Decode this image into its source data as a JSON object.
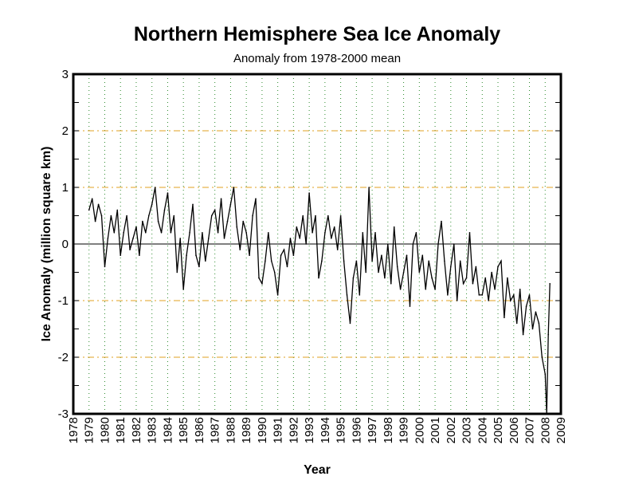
{
  "chart_data": {
    "type": "line",
    "title": "Northern Hemisphere Sea Ice Anomaly",
    "subtitle": "Anomaly from 1978-2000 mean",
    "xlabel": "Year",
    "ylabel": "Ice Anomaly (million square km)",
    "xlim": [
      1978,
      2009
    ],
    "ylim": [
      -3,
      3
    ],
    "xticks": [
      "1978",
      "1979",
      "1980",
      "1981",
      "1982",
      "1983",
      "1984",
      "1985",
      "1986",
      "1987",
      "1988",
      "1989",
      "1990",
      "1991",
      "1992",
      "1993",
      "1994",
      "1995",
      "1996",
      "1997",
      "1998",
      "1999",
      "2000",
      "2001",
      "2002",
      "2003",
      "2004",
      "2005",
      "2006",
      "2007",
      "2008",
      "2009"
    ],
    "yticks": [
      "-3",
      "-2",
      "-1",
      "0",
      "1",
      "2",
      "3"
    ],
    "grid": {
      "vertical": "green dotted, each year",
      "horizontal": "orange dash-dot at ±1, ±2",
      "zero_line": "black solid"
    },
    "colors": {
      "line": "#000000",
      "vgrid": "#2e8b2e",
      "hgrid": "#e0a020"
    },
    "series": [
      {
        "points": [
          [
            1979.0,
            0.6
          ],
          [
            1979.2,
            0.8
          ],
          [
            1979.4,
            0.4
          ],
          [
            1979.6,
            0.7
          ],
          [
            1979.8,
            0.5
          ],
          [
            1980.0,
            -0.4
          ],
          [
            1980.2,
            0.1
          ],
          [
            1980.4,
            0.5
          ],
          [
            1980.6,
            0.2
          ],
          [
            1980.8,
            0.6
          ],
          [
            1981.0,
            -0.2
          ],
          [
            1981.2,
            0.2
          ],
          [
            1981.4,
            0.5
          ],
          [
            1981.6,
            -0.1
          ],
          [
            1981.8,
            0.1
          ],
          [
            1982.0,
            0.3
          ],
          [
            1982.2,
            -0.2
          ],
          [
            1982.4,
            0.4
          ],
          [
            1982.6,
            0.2
          ],
          [
            1982.8,
            0.5
          ],
          [
            1983.0,
            0.7
          ],
          [
            1983.2,
            1.0
          ],
          [
            1983.4,
            0.4
          ],
          [
            1983.6,
            0.2
          ],
          [
            1983.8,
            0.6
          ],
          [
            1984.0,
            0.9
          ],
          [
            1984.2,
            0.2
          ],
          [
            1984.4,
            0.5
          ],
          [
            1984.6,
            -0.5
          ],
          [
            1984.8,
            0.1
          ],
          [
            1985.0,
            -0.8
          ],
          [
            1985.2,
            -0.2
          ],
          [
            1985.4,
            0.2
          ],
          [
            1985.6,
            0.7
          ],
          [
            1985.8,
            -0.2
          ],
          [
            1986.0,
            -0.4
          ],
          [
            1986.2,
            0.2
          ],
          [
            1986.4,
            -0.3
          ],
          [
            1986.6,
            0.1
          ],
          [
            1986.8,
            0.5
          ],
          [
            1987.0,
            0.6
          ],
          [
            1987.2,
            0.2
          ],
          [
            1987.4,
            0.8
          ],
          [
            1987.6,
            0.1
          ],
          [
            1987.8,
            0.4
          ],
          [
            1988.0,
            0.7
          ],
          [
            1988.2,
            1.0
          ],
          [
            1988.4,
            0.3
          ],
          [
            1988.6,
            -0.1
          ],
          [
            1988.8,
            0.4
          ],
          [
            1989.0,
            0.2
          ],
          [
            1989.2,
            -0.2
          ],
          [
            1989.4,
            0.5
          ],
          [
            1989.6,
            0.8
          ],
          [
            1989.8,
            -0.6
          ],
          [
            1990.0,
            -0.7
          ],
          [
            1990.2,
            -0.3
          ],
          [
            1990.4,
            0.2
          ],
          [
            1990.6,
            -0.3
          ],
          [
            1990.8,
            -0.5
          ],
          [
            1991.0,
            -0.9
          ],
          [
            1991.2,
            -0.2
          ],
          [
            1991.4,
            -0.1
          ],
          [
            1991.6,
            -0.4
          ],
          [
            1991.8,
            0.1
          ],
          [
            1992.0,
            -0.2
          ],
          [
            1992.2,
            0.3
          ],
          [
            1992.4,
            0.1
          ],
          [
            1992.6,
            0.5
          ],
          [
            1992.8,
            0.0
          ],
          [
            1993.0,
            0.9
          ],
          [
            1993.2,
            0.2
          ],
          [
            1993.4,
            0.5
          ],
          [
            1993.6,
            -0.6
          ],
          [
            1993.8,
            -0.3
          ],
          [
            1994.0,
            0.2
          ],
          [
            1994.2,
            0.5
          ],
          [
            1994.4,
            0.1
          ],
          [
            1994.6,
            0.3
          ],
          [
            1994.8,
            -0.1
          ],
          [
            1995.0,
            0.5
          ],
          [
            1995.2,
            -0.3
          ],
          [
            1995.4,
            -0.9
          ],
          [
            1995.6,
            -1.4
          ],
          [
            1995.8,
            -0.6
          ],
          [
            1996.0,
            -0.3
          ],
          [
            1996.2,
            -0.9
          ],
          [
            1996.4,
            0.2
          ],
          [
            1996.6,
            -0.5
          ],
          [
            1996.8,
            1.0
          ],
          [
            1997.0,
            -0.3
          ],
          [
            1997.2,
            0.2
          ],
          [
            1997.4,
            -0.5
          ],
          [
            1997.6,
            -0.2
          ],
          [
            1997.8,
            -0.6
          ],
          [
            1998.0,
            0.0
          ],
          [
            1998.2,
            -0.7
          ],
          [
            1998.4,
            0.3
          ],
          [
            1998.6,
            -0.4
          ],
          [
            1998.8,
            -0.8
          ],
          [
            1999.0,
            -0.5
          ],
          [
            1999.2,
            -0.2
          ],
          [
            1999.4,
            -1.1
          ],
          [
            1999.6,
            0.0
          ],
          [
            1999.8,
            0.2
          ],
          [
            2000.0,
            -0.5
          ],
          [
            2000.2,
            -0.2
          ],
          [
            2000.4,
            -0.8
          ],
          [
            2000.6,
            -0.3
          ],
          [
            2000.8,
            -0.6
          ],
          [
            2001.0,
            -0.8
          ],
          [
            2001.2,
            0.0
          ],
          [
            2001.4,
            0.4
          ],
          [
            2001.6,
            -0.3
          ],
          [
            2001.8,
            -0.9
          ],
          [
            2002.0,
            -0.4
          ],
          [
            2002.2,
            0.0
          ],
          [
            2002.4,
            -1.0
          ],
          [
            2002.6,
            -0.3
          ],
          [
            2002.8,
            -0.7
          ],
          [
            2003.0,
            -0.6
          ],
          [
            2003.2,
            0.2
          ],
          [
            2003.4,
            -0.7
          ],
          [
            2003.6,
            -0.4
          ],
          [
            2003.8,
            -0.9
          ],
          [
            2004.0,
            -0.9
          ],
          [
            2004.2,
            -0.6
          ],
          [
            2004.4,
            -1.0
          ],
          [
            2004.6,
            -0.5
          ],
          [
            2004.8,
            -0.8
          ],
          [
            2005.0,
            -0.4
          ],
          [
            2005.2,
            -0.3
          ],
          [
            2005.4,
            -1.3
          ],
          [
            2005.6,
            -0.6
          ],
          [
            2005.8,
            -1.0
          ],
          [
            2006.0,
            -0.9
          ],
          [
            2006.2,
            -1.4
          ],
          [
            2006.4,
            -0.8
          ],
          [
            2006.6,
            -1.6
          ],
          [
            2006.8,
            -1.1
          ],
          [
            2007.0,
            -0.9
          ],
          [
            2007.2,
            -1.5
          ],
          [
            2007.4,
            -1.2
          ],
          [
            2007.6,
            -1.4
          ],
          [
            2007.8,
            -2.0
          ],
          [
            2008.0,
            -2.3
          ],
          [
            2008.1,
            -3.0
          ],
          [
            2008.2,
            -1.6
          ],
          [
            2008.3,
            -0.7
          ]
        ]
      }
    ]
  }
}
